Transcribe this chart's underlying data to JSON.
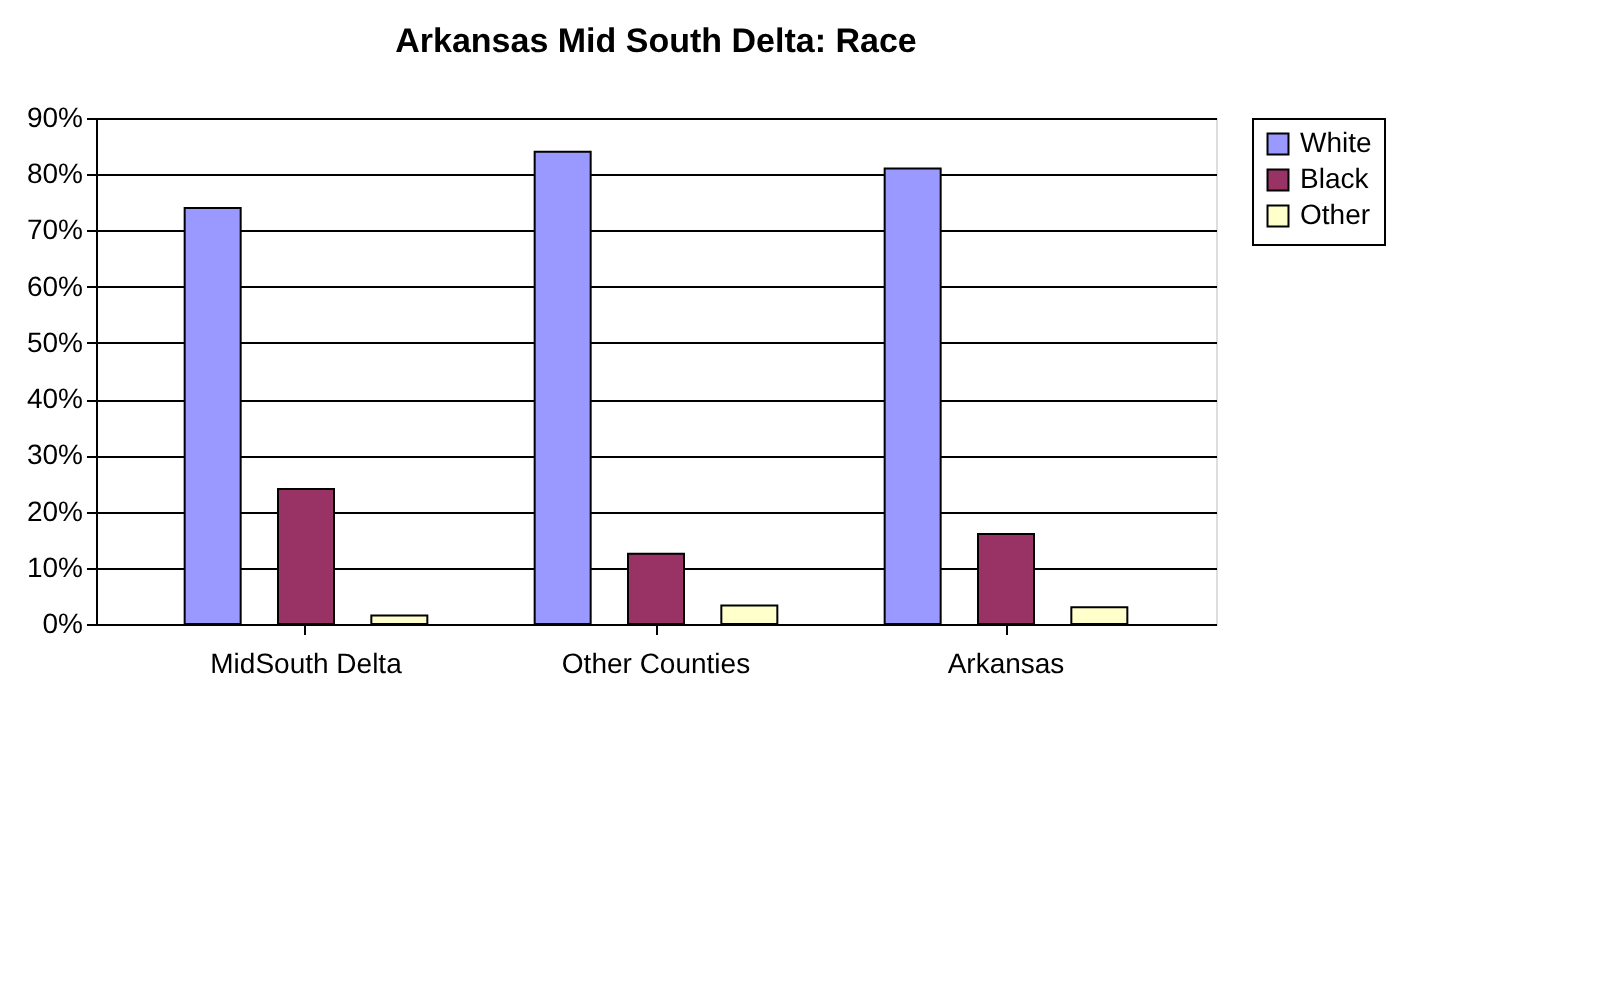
{
  "chart_data": {
    "type": "bar",
    "title": "Arkansas Mid South Delta: Race",
    "categories": [
      "MidSouth Delta",
      "Other Counties",
      "Arkansas"
    ],
    "series": [
      {
        "name": "White",
        "color": "#9999ff",
        "values": [
          74,
          84,
          81
        ]
      },
      {
        "name": "Black",
        "color": "#993366",
        "values": [
          24,
          12.5,
          16
        ]
      },
      {
        "name": "Other",
        "color": "#ffffcc",
        "values": [
          1.5,
          3.3,
          3
        ]
      }
    ],
    "ylim": [
      0,
      90
    ],
    "yticks": [
      {
        "value": 0,
        "label": "0%"
      },
      {
        "value": 10,
        "label": "10%"
      },
      {
        "value": 20,
        "label": "20%"
      },
      {
        "value": 30,
        "label": "30%"
      },
      {
        "value": 40,
        "label": "40%"
      },
      {
        "value": 50,
        "label": "50%"
      },
      {
        "value": 60,
        "label": "60%"
      },
      {
        "value": 70,
        "label": "70%"
      },
      {
        "value": 80,
        "label": "80%"
      },
      {
        "value": 90,
        "label": "90%"
      }
    ],
    "grid": "y",
    "legend": "right"
  }
}
